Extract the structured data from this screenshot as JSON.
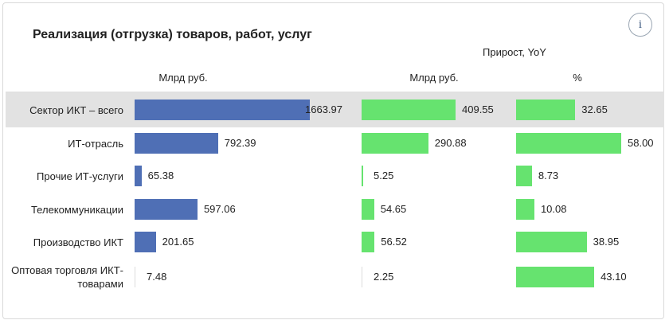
{
  "title": "Реализация (отгрузка) товаров, работ, услуг",
  "header": {
    "growth": "Прирост, YoY",
    "col_abs": "Млрд руб.",
    "col_growth_abs": "Млрд руб.",
    "col_growth_pct": "%"
  },
  "info_glyph": "i",
  "colors": {
    "blue": "#4f6fb5",
    "green": "#66e36f",
    "highlight": "#e2e2e2"
  },
  "chart_data": {
    "type": "bar",
    "orientation": "horizontal",
    "categories": [
      "Сектор ИКТ – всего",
      "ИТ-отрасль",
      "Прочие ИТ-услуги",
      "Телекоммуникации",
      "Производство ИКТ",
      "Оптовая торговля ИКТ-товарами"
    ],
    "series": [
      {
        "name": "Млрд руб.",
        "values": [
          1663.97,
          792.39,
          65.38,
          597.06,
          201.65,
          7.48
        ],
        "labels": [
          "1663.97",
          "792.39",
          "65.38",
          "597.06",
          "201.65",
          "7.48"
        ]
      },
      {
        "name": "Млрд руб.",
        "values": [
          409.55,
          290.88,
          5.25,
          54.65,
          56.52,
          2.25
        ],
        "labels": [
          "409.55",
          "290.88",
          "5.25",
          "54.65",
          "56.52",
          "2.25"
        ]
      },
      {
        "name": "%",
        "values": [
          32.65,
          58.0,
          8.73,
          10.08,
          38.95,
          43.1
        ],
        "labels": [
          "32.65",
          "58.00",
          "8.73",
          "10.08",
          "38.95",
          "43.10"
        ]
      }
    ]
  }
}
